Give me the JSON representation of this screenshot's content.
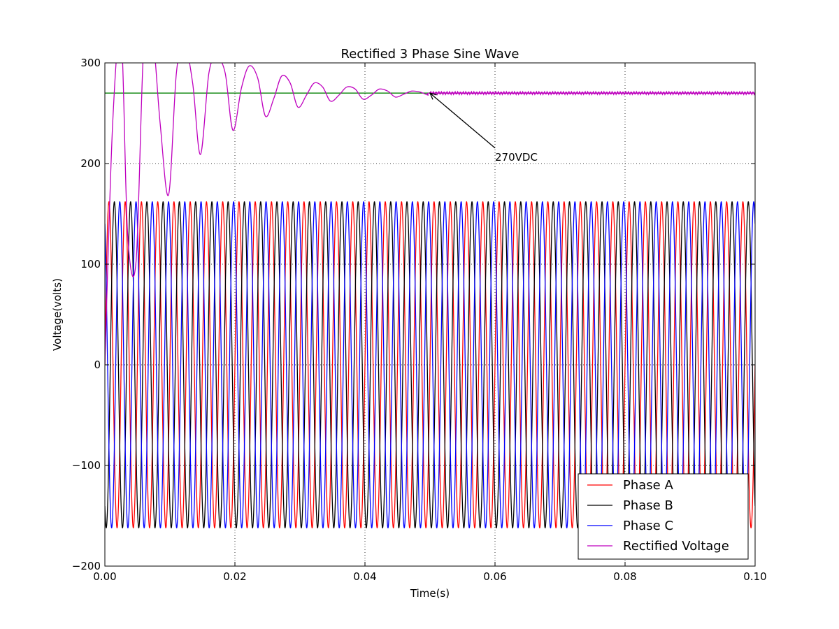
{
  "chart_data": {
    "type": "line",
    "title": "Rectified 3 Phase Sine Wave",
    "xlabel": "Time(s)",
    "ylabel": "Voltage(volts)",
    "xlim": [
      0.0,
      0.1
    ],
    "ylim": [
      -200,
      300
    ],
    "x_ticks": [
      0.0,
      0.02,
      0.04,
      0.06,
      0.08,
      0.1
    ],
    "x_tick_labels": [
      "0.00",
      "0.02",
      "0.04",
      "0.06",
      "0.08",
      "0.10"
    ],
    "y_ticks": [
      -200,
      -100,
      0,
      100,
      200,
      300
    ],
    "y_tick_labels": [
      "−200",
      "−100",
      "0",
      "100",
      "200",
      "300"
    ],
    "grid": true,
    "legend_position": "lower-right",
    "series": [
      {
        "name": "Phase A",
        "color": "#ff0000",
        "kind": "sine",
        "amplitude": 162,
        "frequency_hz": 400,
        "phase_deg": 0
      },
      {
        "name": "Phase B",
        "color": "#000000",
        "kind": "sine",
        "amplitude": 162,
        "frequency_hz": 400,
        "phase_deg": -120
      },
      {
        "name": "Phase C",
        "color": "#0000ff",
        "kind": "sine",
        "amplitude": 162,
        "frequency_hz": 400,
        "phase_deg": 120
      },
      {
        "name": "Rectified Voltage",
        "color": "#bf00bf",
        "kind": "damped",
        "steady_value": 270,
        "x": [
          0.0,
          0.0012,
          0.0025,
          0.0035,
          0.0048,
          0.006,
          0.0073,
          0.0085,
          0.0098,
          0.011,
          0.0122,
          0.0135,
          0.0147,
          0.016,
          0.0172,
          0.0185,
          0.0197,
          0.021,
          0.0222,
          0.0235,
          0.0247,
          0.026,
          0.0272,
          0.0285,
          0.0297,
          0.031,
          0.0322,
          0.0335,
          0.0347,
          0.036,
          0.0372,
          0.0385,
          0.0397,
          0.041,
          0.0422,
          0.0435,
          0.0447,
          0.046,
          0.0472,
          0.0485,
          0.0497,
          0.05,
          0.055,
          0.06,
          0.065,
          0.07,
          0.075,
          0.08,
          0.085,
          0.09,
          0.095,
          0.1
        ],
        "y": [
          0,
          240,
          330,
          130,
          103,
          320,
          330,
          240,
          169,
          290,
          320,
          280,
          209,
          290,
          305,
          290,
          233,
          275,
          297,
          285,
          247,
          265,
          287,
          280,
          256,
          268,
          280,
          276,
          262,
          268,
          276,
          274,
          264,
          268,
          274,
          272,
          266,
          269,
          272,
          271,
          268,
          270,
          270,
          270,
          270,
          270,
          270,
          270,
          270,
          270,
          270,
          270
        ]
      }
    ],
    "reference_line": {
      "value": 270,
      "color": "#008000"
    },
    "annotation": {
      "text": "270VDC",
      "arrow_from": [
        0.06,
        205
      ],
      "arrow_to": [
        0.05,
        270
      ]
    }
  }
}
